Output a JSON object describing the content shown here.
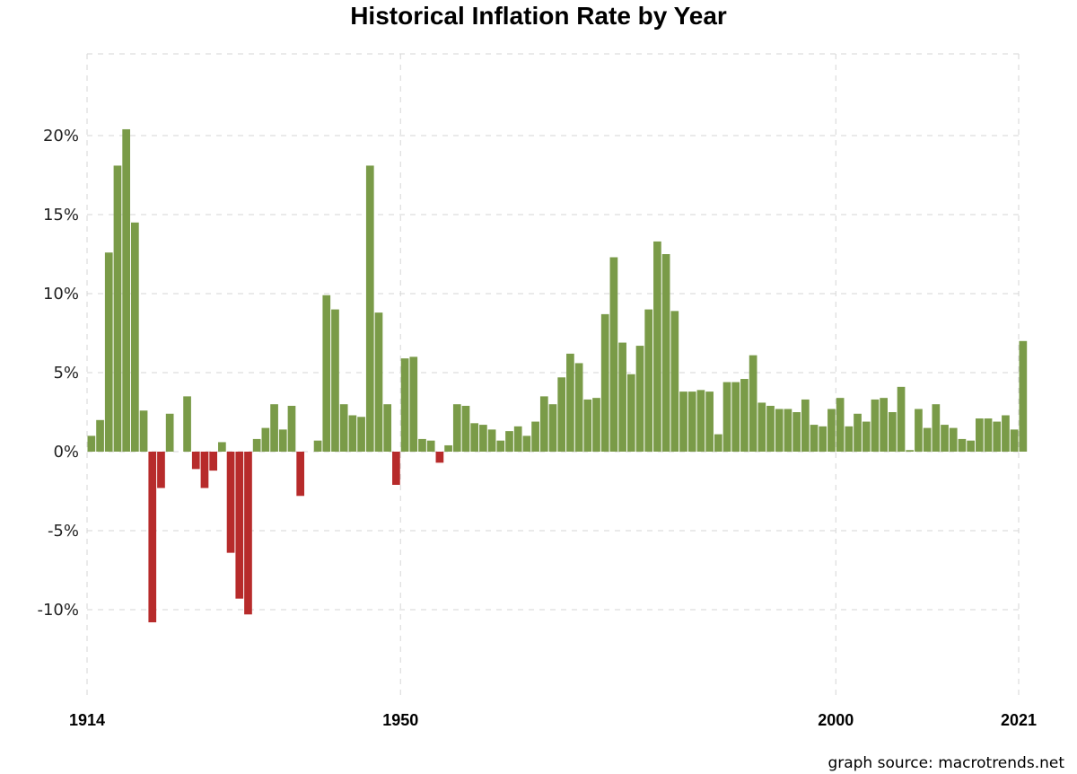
{
  "chart_data": {
    "type": "bar",
    "title": "Historical Inflation Rate by Year",
    "source": "graph source: macrotrends.net",
    "xlabel": "",
    "ylabel": "",
    "xlim": [
      1914,
      2021
    ],
    "ylim": [
      -15,
      25
    ],
    "y_ticks": [
      20,
      15,
      10,
      5,
      0,
      -5,
      -10
    ],
    "y_tick_labels": [
      "20%",
      "15%",
      "10%",
      "5%",
      "0%",
      "-5%",
      "-10%"
    ],
    "x_ticks": [
      1914,
      1950,
      2000,
      2021
    ],
    "x_tick_labels": [
      "1914",
      "1950",
      "2000",
      "2021"
    ],
    "grid": true,
    "positive_color": "#7a9b48",
    "negative_color": "#b72b2b",
    "years": [
      1914,
      1915,
      1916,
      1917,
      1918,
      1919,
      1920,
      1921,
      1922,
      1923,
      1924,
      1925,
      1926,
      1927,
      1928,
      1929,
      1930,
      1931,
      1932,
      1933,
      1934,
      1935,
      1936,
      1937,
      1938,
      1939,
      1940,
      1941,
      1942,
      1943,
      1944,
      1945,
      1946,
      1947,
      1948,
      1949,
      1950,
      1951,
      1952,
      1953,
      1954,
      1955,
      1956,
      1957,
      1958,
      1959,
      1960,
      1961,
      1962,
      1963,
      1964,
      1965,
      1966,
      1967,
      1968,
      1969,
      1970,
      1971,
      1972,
      1973,
      1974,
      1975,
      1976,
      1977,
      1978,
      1979,
      1980,
      1981,
      1982,
      1983,
      1984,
      1985,
      1986,
      1987,
      1988,
      1989,
      1990,
      1991,
      1992,
      1993,
      1994,
      1995,
      1996,
      1997,
      1998,
      1999,
      2000,
      2001,
      2002,
      2003,
      2004,
      2005,
      2006,
      2007,
      2008,
      2009,
      2010,
      2011,
      2012,
      2013,
      2014,
      2015,
      2016,
      2017,
      2018,
      2019,
      2020,
      2021
    ],
    "values": [
      1.0,
      2.0,
      12.6,
      18.1,
      20.4,
      14.5,
      2.6,
      -10.8,
      -2.3,
      2.4,
      0.0,
      3.5,
      -1.1,
      -2.3,
      -1.2,
      0.6,
      -6.4,
      -9.3,
      -10.3,
      0.8,
      1.5,
      3.0,
      1.4,
      2.9,
      -2.8,
      0.0,
      0.7,
      9.9,
      9.0,
      3.0,
      2.3,
      2.2,
      18.1,
      8.8,
      3.0,
      -2.1,
      5.9,
      6.0,
      0.8,
      0.7,
      -0.7,
      0.4,
      3.0,
      2.9,
      1.8,
      1.7,
      1.4,
      0.7,
      1.3,
      1.6,
      1.0,
      1.9,
      3.5,
      3.0,
      4.7,
      6.2,
      5.6,
      3.3,
      3.4,
      8.7,
      12.3,
      6.9,
      4.9,
      6.7,
      9.0,
      13.3,
      12.5,
      8.9,
      3.8,
      3.8,
      3.9,
      3.8,
      1.1,
      4.4,
      4.4,
      4.6,
      6.1,
      3.1,
      2.9,
      2.7,
      2.7,
      2.5,
      3.3,
      1.7,
      1.6,
      2.7,
      3.4,
      1.6,
      2.4,
      1.9,
      3.3,
      3.4,
      2.5,
      4.1,
      0.1,
      2.7,
      1.5,
      3.0,
      1.7,
      1.5,
      0.8,
      0.7,
      2.1,
      2.1,
      1.9,
      2.3,
      1.4,
      7.0
    ]
  }
}
